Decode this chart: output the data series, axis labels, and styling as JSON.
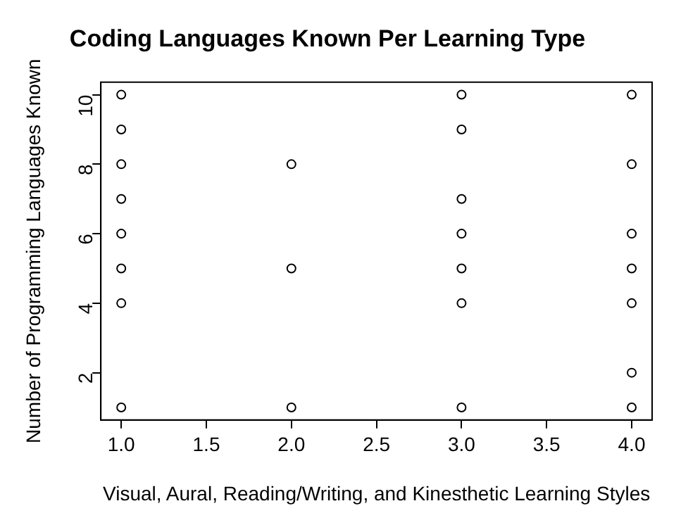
{
  "chart_data": {
    "type": "scatter",
    "title": "Coding Languages Known Per Learning Type",
    "xlabel": "Visual, Aural, Reading/Writing, and Kinesthetic Learning Styles",
    "ylabel": "Number of Programming Languages Known",
    "x": [
      1,
      1,
      1,
      1,
      1,
      1,
      1,
      1,
      2,
      2,
      2,
      3,
      3,
      3,
      3,
      3,
      3,
      3,
      4,
      4,
      4,
      4,
      4,
      4,
      4
    ],
    "series": [
      {
        "color": "#000000",
        "values": [
          10,
          9,
          8,
          7,
          6,
          5,
          4,
          1,
          8,
          5,
          1,
          10,
          9,
          7,
          6,
          5,
          4,
          1,
          10,
          8,
          6,
          5,
          4,
          2,
          1
        ]
      }
    ],
    "xlim": [
      0.88,
      4.12
    ],
    "ylim": [
      0.64,
      10.36
    ],
    "xticks": [
      {
        "value": 1,
        "label": "1.0"
      },
      {
        "value": 1.5,
        "label": "1.5"
      },
      {
        "value": 2,
        "label": "2.0"
      },
      {
        "value": 2.5,
        "label": "2.5"
      },
      {
        "value": 3,
        "label": "3.0"
      },
      {
        "value": 3.5,
        "label": "3.5"
      },
      {
        "value": 4,
        "label": "4.0"
      }
    ],
    "yticks": [
      2,
      4,
      6,
      8,
      10
    ],
    "marker": "circle",
    "grid": false,
    "legend": false
  }
}
